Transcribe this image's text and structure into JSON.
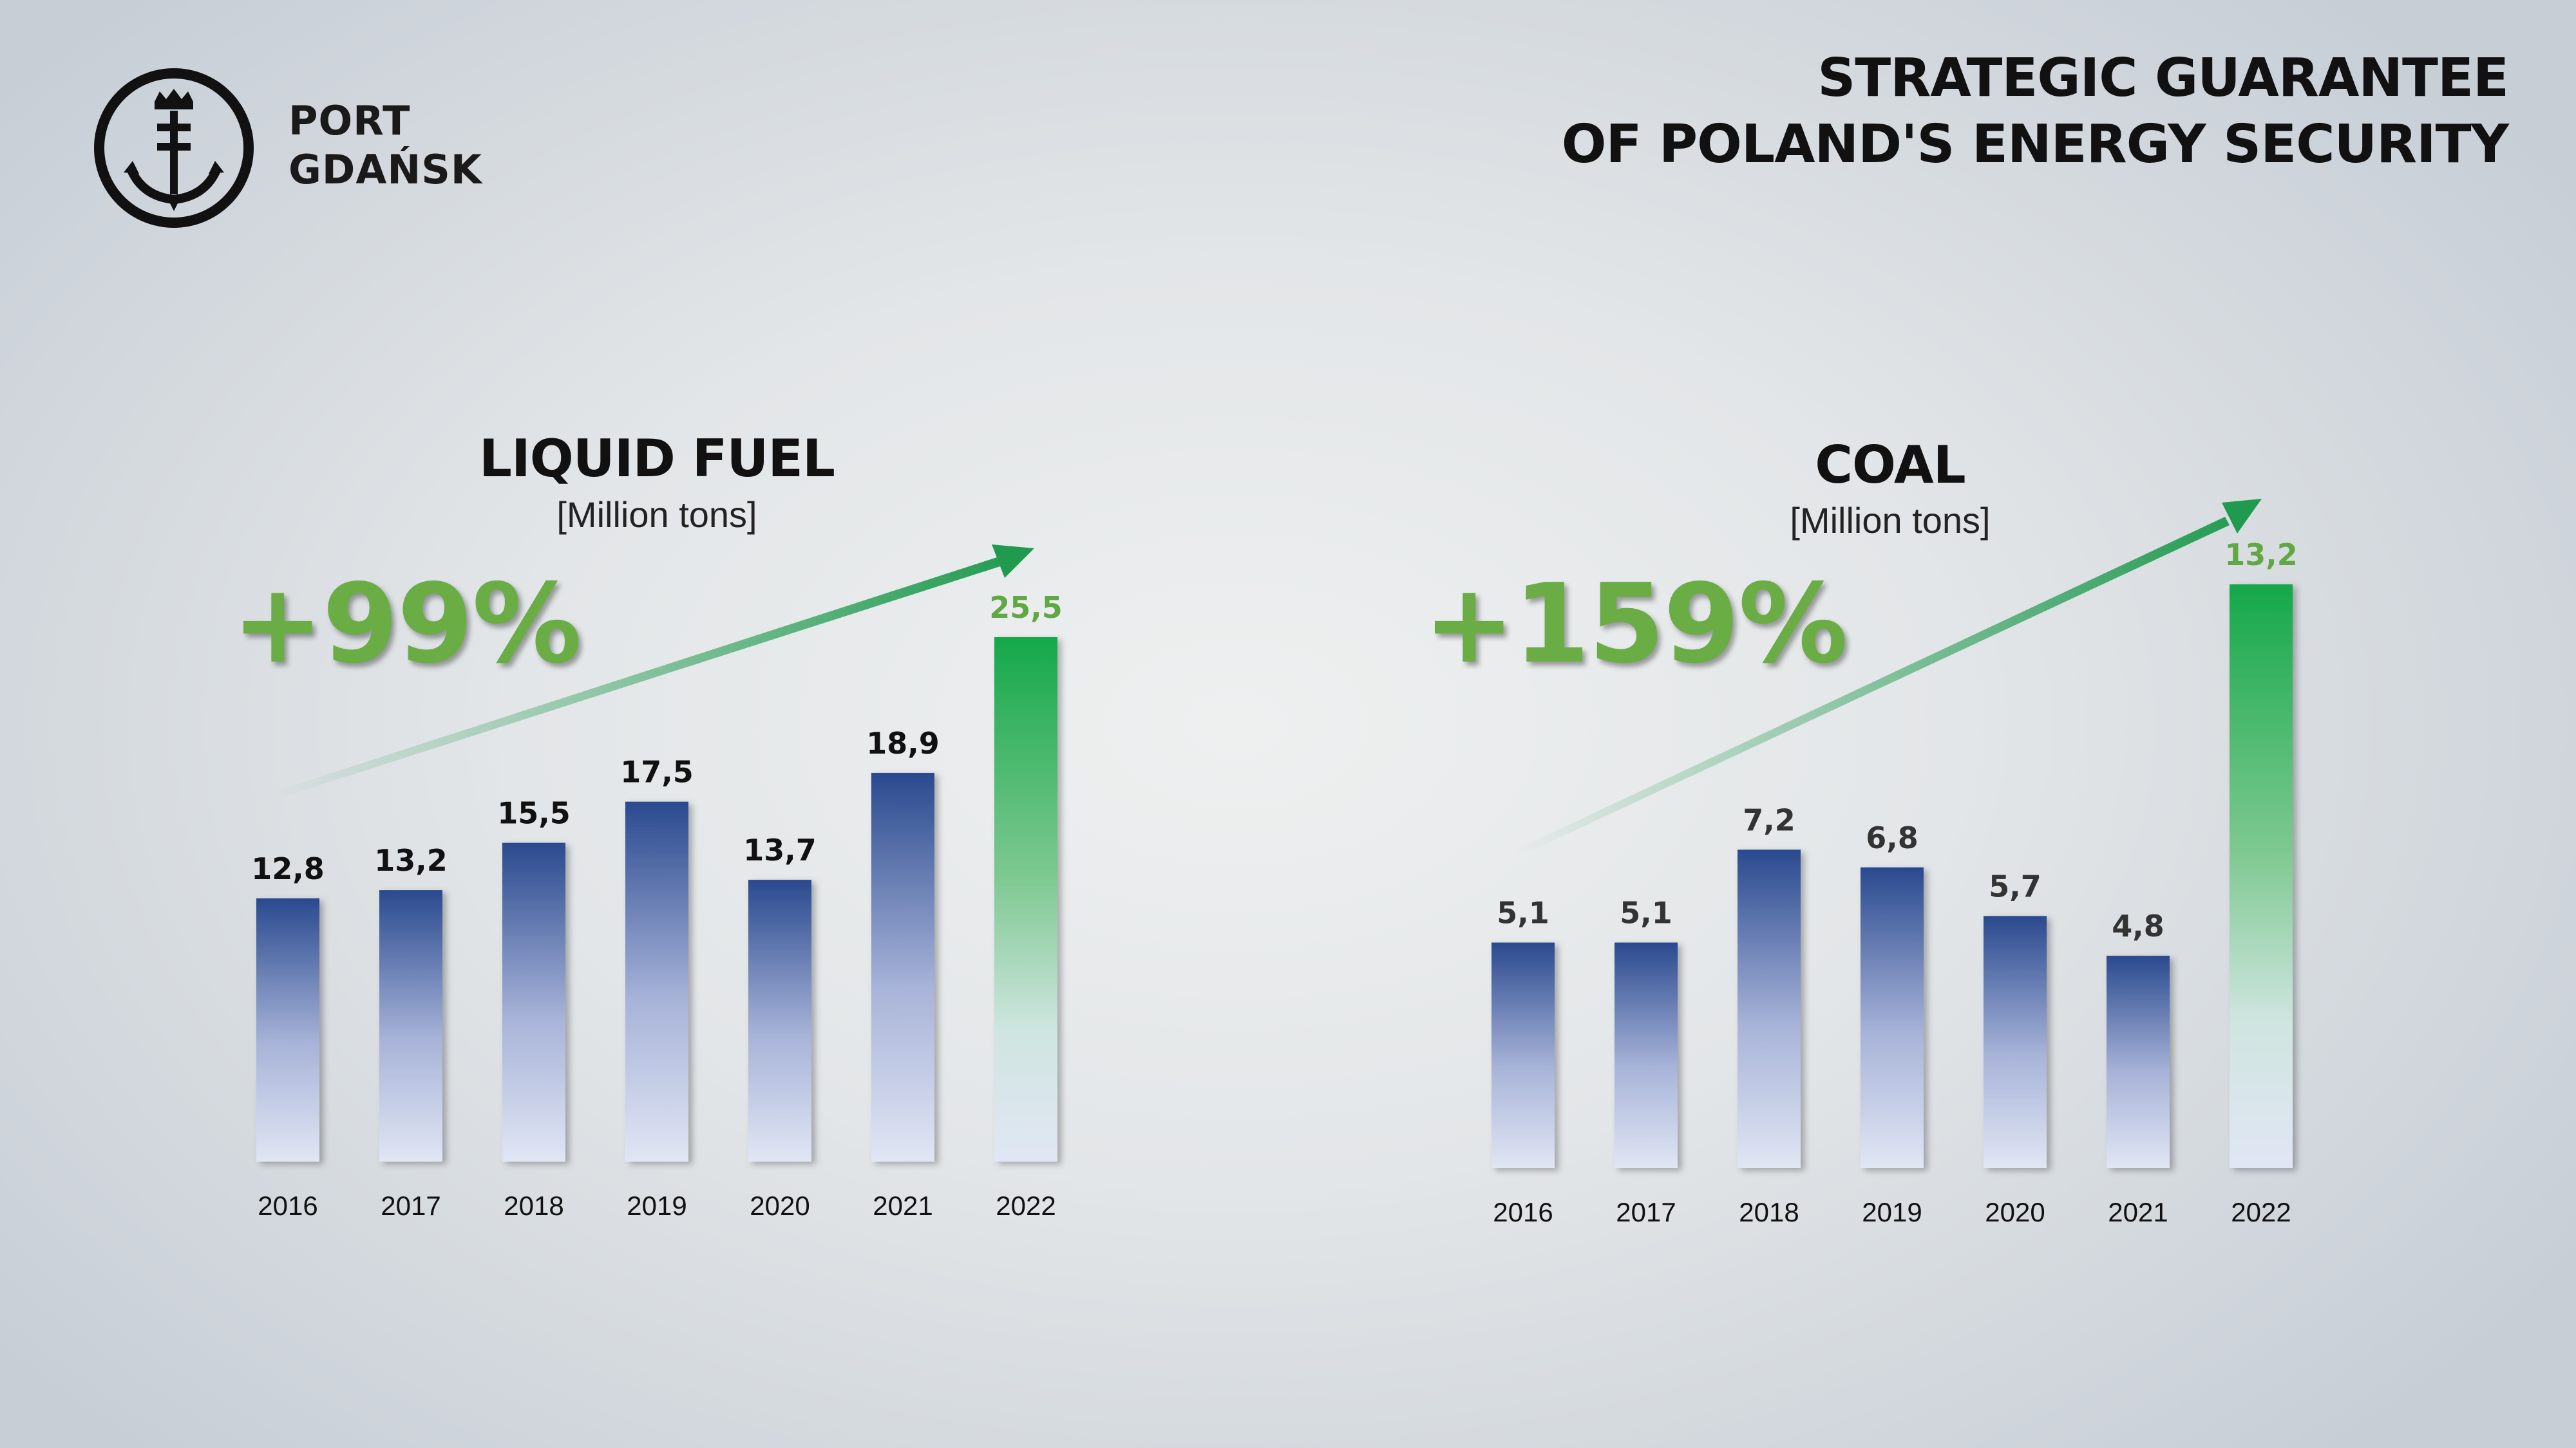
{
  "brand": {
    "name_line1": "PORT",
    "name_line2": "GDAŃSK",
    "logo_icon": "anchor-crown-emblem-icon"
  },
  "headline": {
    "line1": "STRATEGIC GUARANTEE",
    "line2": "OF POLAND'S ENERGY SECURITY"
  },
  "colors": {
    "bar_blue_top": "#2a4a8f",
    "bar_blue_bottom": "#dfe4f3",
    "bar_green_top": "#15a84a",
    "bar_green_bottom": "#dfe4f3",
    "growth_green": "#6aad45",
    "highlight_label": "#5fa843",
    "arrow_green": "#1f9a4e"
  },
  "chart_data": [
    {
      "type": "bar",
      "title": "LIQUID FUEL",
      "unit": "[Million tons]",
      "growth": "+99%",
      "categories": [
        "2016",
        "2017",
        "2018",
        "2019",
        "2020",
        "2021",
        "2022"
      ],
      "values": [
        12.8,
        13.2,
        15.5,
        17.5,
        13.7,
        18.9,
        25.5
      ],
      "value_labels": [
        "12,8",
        "13,2",
        "15,5",
        "17,5",
        "13,7",
        "18,9",
        "25,5"
      ],
      "highlight": "2022"
    },
    {
      "type": "bar",
      "title": "COAL",
      "unit": "[Million tons]",
      "growth": "+159%",
      "categories": [
        "2016",
        "2017",
        "2018",
        "2019",
        "2020",
        "2021",
        "2022"
      ],
      "values": [
        5.1,
        5.1,
        7.2,
        6.8,
        5.7,
        4.8,
        13.2
      ],
      "value_labels": [
        "5,1",
        "5,1",
        "7,2",
        "6,8",
        "5,7",
        "4,8",
        "13,2"
      ],
      "highlight": "2022"
    }
  ]
}
